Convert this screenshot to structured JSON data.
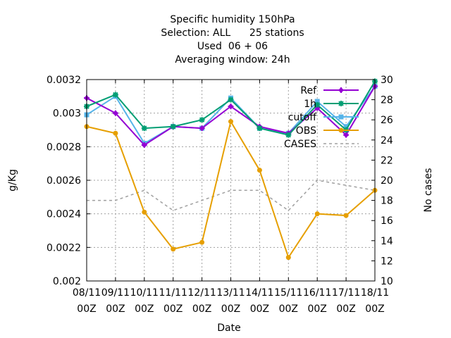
{
  "chart_data": {
    "type": "line",
    "title_lines": [
      "Specific humidity 150hPa",
      "Selection: ALL      25 stations",
      "Used  06 + 06",
      "Averaging window: 24h"
    ],
    "xlabel": "Date",
    "ylabel": "g/Kg",
    "y2label": "No cases",
    "categories": [
      [
        "08/11",
        "00Z"
      ],
      [
        "09/11",
        "00Z"
      ],
      [
        "10/11",
        "00Z"
      ],
      [
        "11/11",
        "00Z"
      ],
      [
        "12/11",
        "00Z"
      ],
      [
        "13/11",
        "00Z"
      ],
      [
        "14/11",
        "00Z"
      ],
      [
        "15/11",
        "00Z"
      ],
      [
        "16/11",
        "00Z"
      ],
      [
        "17/11",
        "00Z"
      ],
      [
        "18/11",
        "00Z"
      ]
    ],
    "ylim": [
      0.002,
      0.0032
    ],
    "yticks": [
      "0.002",
      "0.0022",
      "0.0024",
      "0.0026",
      "0.0028",
      "0.003",
      "0.0032"
    ],
    "y2lim": [
      10,
      30
    ],
    "y2ticks": [
      "10",
      "12",
      "14",
      "16",
      "18",
      "20",
      "22",
      "24",
      "26",
      "28",
      "30"
    ],
    "grid": true,
    "legend_position": "top-right",
    "series": [
      {
        "name": "Ref",
        "axis": "y",
        "color": "#9400d3",
        "marker": "plus",
        "dash": "",
        "values": [
          0.00309,
          0.003,
          0.00281,
          0.00292,
          0.00291,
          0.00304,
          0.00292,
          0.00288,
          0.00303,
          0.00287,
          0.00316
        ]
      },
      {
        "name": "1h",
        "axis": "y",
        "color": "#009e73",
        "marker": "star",
        "dash": "",
        "values": [
          0.00304,
          0.00311,
          0.00291,
          0.00292,
          0.00296,
          0.00308,
          0.00291,
          0.00287,
          0.00305,
          0.0029,
          0.00319
        ]
      },
      {
        "name": "cutoff",
        "axis": "y",
        "color": "#56b4e9",
        "marker": "box",
        "dash": "",
        "values": [
          0.00299,
          0.0031,
          0.00282,
          0.00292,
          0.00291,
          0.00309,
          0.00291,
          0.00288,
          0.00307,
          0.00292,
          0.00316
        ]
      },
      {
        "name": "OBS",
        "axis": "y",
        "color": "#e69f00",
        "marker": "circle",
        "dash": "",
        "values": [
          0.00292,
          0.00288,
          0.00241,
          0.00219,
          0.00223,
          0.00295,
          0.00266,
          0.00214,
          0.0024,
          0.00239,
          0.00254
        ]
      },
      {
        "name": "CASES",
        "axis": "y2",
        "color": "#a0a0a0",
        "marker": "none",
        "dash": "4,4",
        "values": [
          18,
          18,
          19,
          17,
          18,
          19,
          19,
          17,
          20,
          19.5,
          19
        ]
      }
    ]
  }
}
